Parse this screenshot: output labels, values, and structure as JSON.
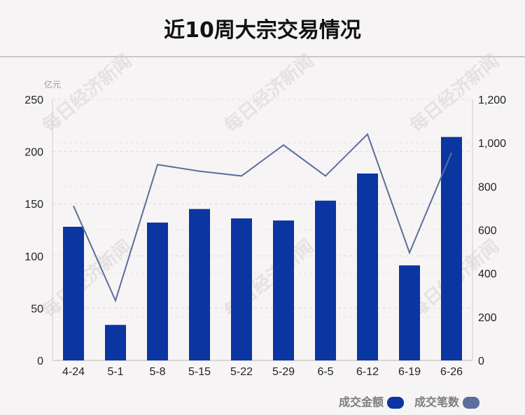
{
  "title": "近10周大宗交易情况",
  "watermark": "每日经济新闻",
  "chart_data": {
    "type": "bar",
    "categories": [
      "4-24",
      "5-1",
      "5-8",
      "5-15",
      "5-22",
      "5-29",
      "6-5",
      "6-12",
      "6-19",
      "6-26"
    ],
    "series": [
      {
        "name": "成交金额",
        "type": "bar",
        "axis": "left",
        "color": "#0b35a0",
        "values": [
          128,
          34,
          132,
          145,
          136,
          134,
          153,
          179,
          91,
          214
        ]
      },
      {
        "name": "成交笔数",
        "type": "line",
        "axis": "right",
        "color": "#5a6f9c",
        "values": [
          710,
          275,
          900,
          870,
          848,
          990,
          848,
          1040,
          495,
          955
        ]
      }
    ],
    "y_left": {
      "unit_label": "亿元",
      "ylim": [
        0,
        250
      ],
      "ticks": [
        "0",
        "50",
        "100",
        "150",
        "200",
        "250"
      ]
    },
    "y_right": {
      "ylim": [
        0,
        1200
      ],
      "ticks": [
        "0",
        "200",
        "400",
        "600",
        "800",
        "1,000",
        "1,200"
      ]
    },
    "grid": true,
    "legend_position": "bottom-right"
  }
}
